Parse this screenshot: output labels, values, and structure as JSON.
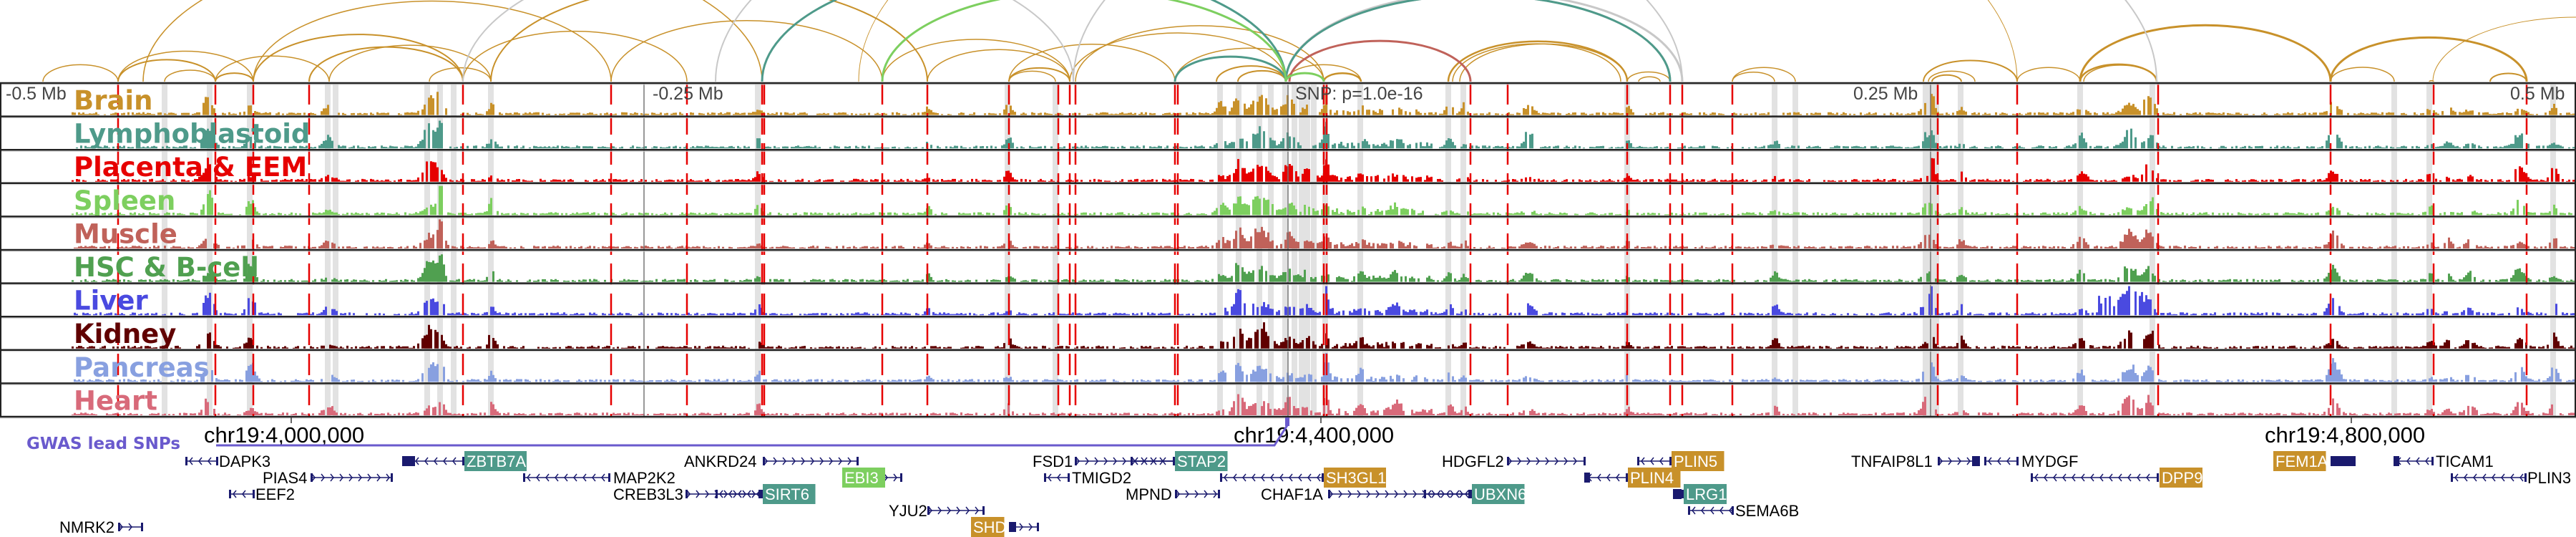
{
  "axis": {
    "left_label": "-0.5 Mb",
    "left_mid_label": "-0.25 Mb",
    "snp_label": "SNP: p=1.0e-16",
    "right_mid_label": "0.25 Mb",
    "right_label": "0.5 Mb"
  },
  "tracks": [
    {
      "label": "Brain",
      "color": "#c8912a"
    },
    {
      "label": "Lymphoblastoid",
      "color": "#4e9a8a"
    },
    {
      "label": "Placenta & EEM",
      "color": "#e60000"
    },
    {
      "label": "Spleen",
      "color": "#7dcf5f"
    },
    {
      "label": "Muscle",
      "color": "#c0625a"
    },
    {
      "label": "HSC & B-cell",
      "color": "#50a050"
    },
    {
      "label": "Liver",
      "color": "#4a4ae0"
    },
    {
      "label": "Kidney",
      "color": "#600000"
    },
    {
      "label": "Pancreas",
      "color": "#88a0e0"
    },
    {
      "label": "Heart",
      "color": "#d86a7a"
    }
  ],
  "coordinates": [
    "chr19:4,000,000",
    "chr19:4,400,000",
    "chr19:4,800,000"
  ],
  "gwas_label": "GWAS lead SNPs",
  "colors": {
    "gwas": "#6a5acd",
    "gene": "#1a1a6e",
    "snp_line": "#e60000",
    "band": "#e2e2e2"
  },
  "genes": [
    {
      "name": "DAPK3",
      "strand": "-"
    },
    {
      "name": "ZBTB7A",
      "strand": "-",
      "highlight": "#4e9a8a"
    },
    {
      "name": "ANKRD24",
      "strand": "+"
    },
    {
      "name": "PIAS4",
      "strand": "+"
    },
    {
      "name": "MAP2K2",
      "strand": "-"
    },
    {
      "name": "EBI3",
      "strand": "+",
      "highlight": "#7dcf5f"
    },
    {
      "name": "EEF2",
      "strand": "-"
    },
    {
      "name": "CREB3L3",
      "strand": "+"
    },
    {
      "name": "SIRT6",
      "strand": "-",
      "highlight": "#4e9a8a"
    },
    {
      "name": "NMRK2",
      "strand": "+"
    },
    {
      "name": "FSD1",
      "strand": "+"
    },
    {
      "name": "STAP2",
      "strand": "-",
      "highlight": "#4e9a8a"
    },
    {
      "name": "HDGFL2",
      "strand": "+"
    },
    {
      "name": "PLIN5",
      "strand": "-",
      "highlight": "#c8912a"
    },
    {
      "name": "TMIGD2",
      "strand": "-"
    },
    {
      "name": "SH3GL1",
      "strand": "-",
      "highlight": "#c8912a"
    },
    {
      "name": "PLIN4",
      "strand": "-",
      "highlight": "#c8912a"
    },
    {
      "name": "MPND",
      "strand": "+"
    },
    {
      "name": "CHAF1A",
      "strand": "+"
    },
    {
      "name": "UBXN6",
      "strand": "-",
      "highlight": "#4e9a8a"
    },
    {
      "name": "LRG1",
      "strand": "-",
      "highlight": "#4e9a8a"
    },
    {
      "name": "YJU2",
      "strand": "+"
    },
    {
      "name": "SEMA6B",
      "strand": "-"
    },
    {
      "name": "SHD",
      "strand": "+",
      "highlight": "#c8912a"
    },
    {
      "name": "TNFAIP8L1",
      "strand": "+"
    },
    {
      "name": "MYDGF",
      "strand": "-"
    },
    {
      "name": "FEM1A",
      "strand": "+",
      "highlight": "#c8912a"
    },
    {
      "name": "TICAM1",
      "strand": "-"
    },
    {
      "name": "DPP9",
      "strand": "-",
      "highlight": "#c8912a"
    },
    {
      "name": "PLIN3",
      "strand": "-"
    }
  ]
}
